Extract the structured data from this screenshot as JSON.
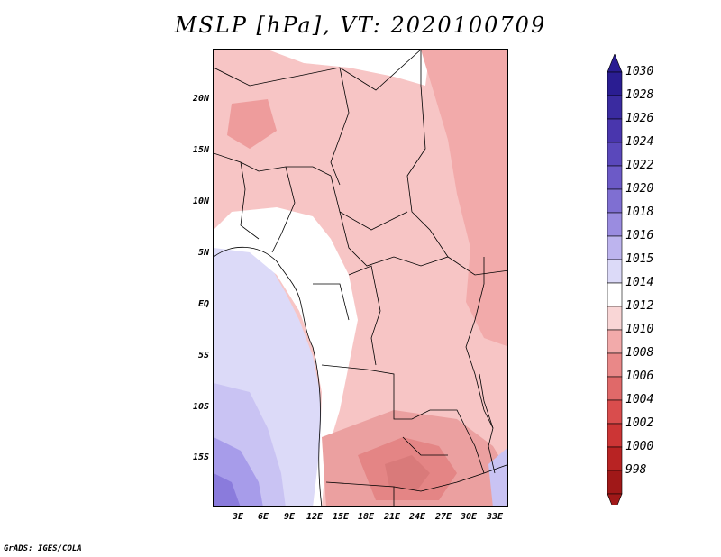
{
  "title": "MSLP [hPa], VT: 2020100709",
  "credit": "GrADS: IGES/COLA",
  "map": {
    "y_ticks": [
      "20N",
      "15N",
      "10N",
      "5N",
      "EQ",
      "5S",
      "10S",
      "15S"
    ],
    "x_ticks": [
      "3E",
      "6E",
      "9E",
      "12E",
      "15E",
      "18E",
      "21E",
      "24E",
      "27E",
      "30E",
      "33E"
    ]
  },
  "colorbar": {
    "labels": [
      "1030",
      "1028",
      "1026",
      "1024",
      "1022",
      "1020",
      "1018",
      "1016",
      "1015",
      "1014",
      "1012",
      "1010",
      "1008",
      "1006",
      "1004",
      "1002",
      "1000",
      "998"
    ],
    "colors": [
      "#2a1d92",
      "#3a2ba0",
      "#4936ad",
      "#5a48bb",
      "#6c5ac7",
      "#7f6fd2",
      "#9a8ce0",
      "#bdb4ee",
      "#dcdaf8",
      "#ffffff",
      "#f9d6d6",
      "#f2aaaa",
      "#e98888",
      "#e06969",
      "#d94d4d",
      "#cc3535",
      "#b82323",
      "#a01818"
    ]
  }
}
